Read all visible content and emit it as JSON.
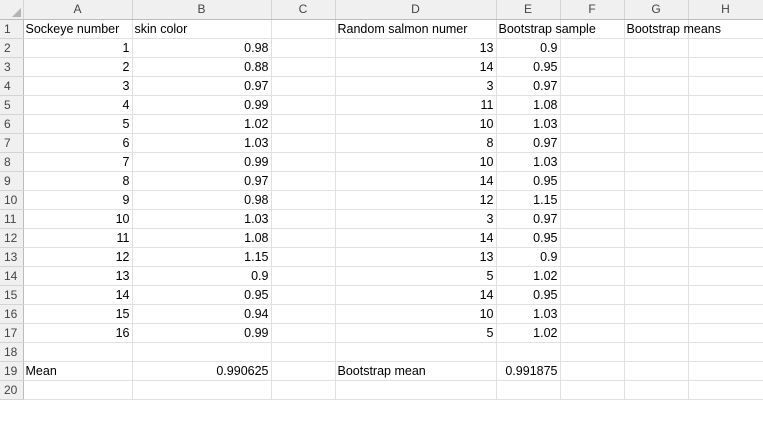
{
  "columns": [
    "A",
    "B",
    "C",
    "D",
    "E",
    "F",
    "G",
    "H"
  ],
  "rows": [
    {
      "n": "1",
      "A": "Sockeye number",
      "B": "skin color",
      "C": "",
      "D": "Random salmon numer",
      "E": "Bootstrap sample",
      "F": "",
      "G": "Bootstrap means",
      "H": ""
    },
    {
      "n": "2",
      "A": "1",
      "B": "0.98",
      "C": "",
      "D": "13",
      "E": "0.9",
      "F": "",
      "G": "",
      "H": ""
    },
    {
      "n": "3",
      "A": "2",
      "B": "0.88",
      "C": "",
      "D": "14",
      "E": "0.95",
      "F": "",
      "G": "",
      "H": ""
    },
    {
      "n": "4",
      "A": "3",
      "B": "0.97",
      "C": "",
      "D": "3",
      "E": "0.97",
      "F": "",
      "G": "",
      "H": ""
    },
    {
      "n": "5",
      "A": "4",
      "B": "0.99",
      "C": "",
      "D": "11",
      "E": "1.08",
      "F": "",
      "G": "",
      "H": ""
    },
    {
      "n": "6",
      "A": "5",
      "B": "1.02",
      "C": "",
      "D": "10",
      "E": "1.03",
      "F": "",
      "G": "",
      "H": ""
    },
    {
      "n": "7",
      "A": "6",
      "B": "1.03",
      "C": "",
      "D": "8",
      "E": "0.97",
      "F": "",
      "G": "",
      "H": ""
    },
    {
      "n": "8",
      "A": "7",
      "B": "0.99",
      "C": "",
      "D": "10",
      "E": "1.03",
      "F": "",
      "G": "",
      "H": ""
    },
    {
      "n": "9",
      "A": "8",
      "B": "0.97",
      "C": "",
      "D": "14",
      "E": "0.95",
      "F": "",
      "G": "",
      "H": ""
    },
    {
      "n": "10",
      "A": "9",
      "B": "0.98",
      "C": "",
      "D": "12",
      "E": "1.15",
      "F": "",
      "G": "",
      "H": ""
    },
    {
      "n": "11",
      "A": "10",
      "B": "1.03",
      "C": "",
      "D": "3",
      "E": "0.97",
      "F": "",
      "G": "",
      "H": ""
    },
    {
      "n": "12",
      "A": "11",
      "B": "1.08",
      "C": "",
      "D": "14",
      "E": "0.95",
      "F": "",
      "G": "",
      "H": ""
    },
    {
      "n": "13",
      "A": "12",
      "B": "1.15",
      "C": "",
      "D": "13",
      "E": "0.9",
      "F": "",
      "G": "",
      "H": ""
    },
    {
      "n": "14",
      "A": "13",
      "B": "0.9",
      "C": "",
      "D": "5",
      "E": "1.02",
      "F": "",
      "G": "",
      "H": ""
    },
    {
      "n": "15",
      "A": "14",
      "B": "0.95",
      "C": "",
      "D": "14",
      "E": "0.95",
      "F": "",
      "G": "",
      "H": ""
    },
    {
      "n": "16",
      "A": "15",
      "B": "0.94",
      "C": "",
      "D": "10",
      "E": "1.03",
      "F": "",
      "G": "",
      "H": ""
    },
    {
      "n": "17",
      "A": "16",
      "B": "0.99",
      "C": "",
      "D": "5",
      "E": "1.02",
      "F": "",
      "G": "",
      "H": ""
    },
    {
      "n": "18",
      "A": "",
      "B": "",
      "C": "",
      "D": "",
      "E": "",
      "F": "",
      "G": "",
      "H": ""
    },
    {
      "n": "19",
      "A": "Mean",
      "B": "0.990625",
      "C": "",
      "D": "Bootstrap mean",
      "E": "0.991875",
      "F": "",
      "G": "",
      "H": ""
    },
    {
      "n": "20",
      "A": "",
      "B": "",
      "C": "",
      "D": "",
      "E": "",
      "F": "",
      "G": "",
      "H": ""
    }
  ]
}
